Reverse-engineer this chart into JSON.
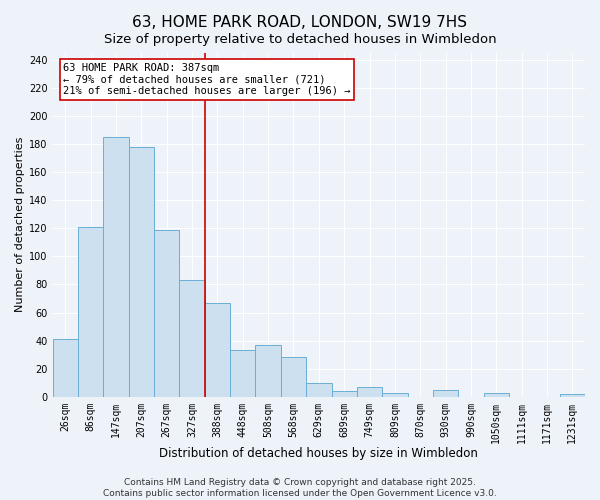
{
  "title": "63, HOME PARK ROAD, LONDON, SW19 7HS",
  "subtitle": "Size of property relative to detached houses in Wimbledon",
  "xlabel": "Distribution of detached houses by size in Wimbledon",
  "ylabel": "Number of detached properties",
  "bin_labels": [
    "26sqm",
    "86sqm",
    "147sqm",
    "207sqm",
    "267sqm",
    "327sqm",
    "388sqm",
    "448sqm",
    "508sqm",
    "568sqm",
    "629sqm",
    "689sqm",
    "749sqm",
    "809sqm",
    "870sqm",
    "930sqm",
    "990sqm",
    "1050sqm",
    "1111sqm",
    "1171sqm",
    "1231sqm"
  ],
  "bar_heights": [
    41,
    121,
    185,
    178,
    119,
    83,
    67,
    33,
    37,
    28,
    10,
    4,
    7,
    3,
    0,
    5,
    0,
    3,
    0,
    0,
    2
  ],
  "bar_color": "#cce0f0",
  "bar_edge_color": "#6baed6",
  "vline_index": 6,
  "vline_color": "#cc0000",
  "annotation_line1": "63 HOME PARK ROAD: 387sqm",
  "annotation_line2": "← 79% of detached houses are smaller (721)",
  "annotation_line3": "21% of semi-detached houses are larger (196) →",
  "annotation_fontsize": 7.5,
  "annotation_box_color": "#ffffff",
  "annotation_box_edge": "#cc0000",
  "ylim": [
    0,
    245
  ],
  "yticks": [
    0,
    20,
    40,
    60,
    80,
    100,
    120,
    140,
    160,
    180,
    200,
    220,
    240
  ],
  "title_fontsize": 11,
  "subtitle_fontsize": 9.5,
  "xlabel_fontsize": 8.5,
  "ylabel_fontsize": 8,
  "tick_fontsize": 7,
  "footer_text": "Contains HM Land Registry data © Crown copyright and database right 2025.\nContains public sector information licensed under the Open Government Licence v3.0.",
  "footer_fontsize": 6.5,
  "background_color": "#eef3fa",
  "grid_color": "#ffffff"
}
